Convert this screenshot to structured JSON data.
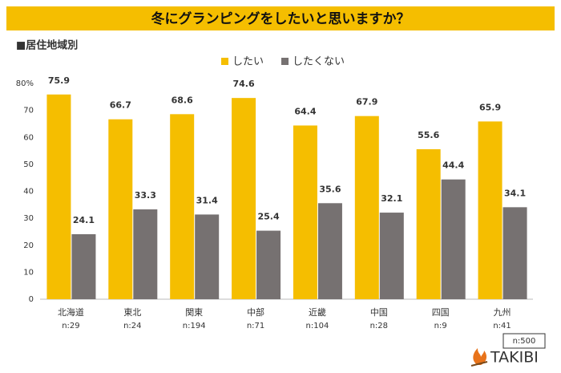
{
  "chart_data": {
    "type": "bar",
    "title": "冬にグランピングをしたいと思いますか？",
    "subtitle": "■居住地域別",
    "categories": [
      "北海道",
      "東北",
      "関東",
      "中部",
      "近畿",
      "中国",
      "四国",
      "九州"
    ],
    "category_notes": [
      "n:29",
      "n:24",
      "n:194",
      "n:71",
      "n:104",
      "n:28",
      "n:9",
      "n:41"
    ],
    "series": [
      {
        "name": "したい",
        "color": "#f5be00",
        "values": [
          75.9,
          66.7,
          68.6,
          74.6,
          64.4,
          67.9,
          55.6,
          65.9
        ]
      },
      {
        "name": "したくない",
        "color": "#767171",
        "values": [
          24.1,
          33.3,
          31.4,
          25.4,
          35.6,
          32.1,
          44.4,
          34.1
        ]
      }
    ],
    "ylim": [
      0,
      80
    ],
    "yticks": [
      0,
      10,
      20,
      30,
      40,
      50,
      60,
      70,
      {
        "value": 80,
        "label": "80%"
      }
    ],
    "total_note": "n:500",
    "logo": "TAKIBI"
  }
}
